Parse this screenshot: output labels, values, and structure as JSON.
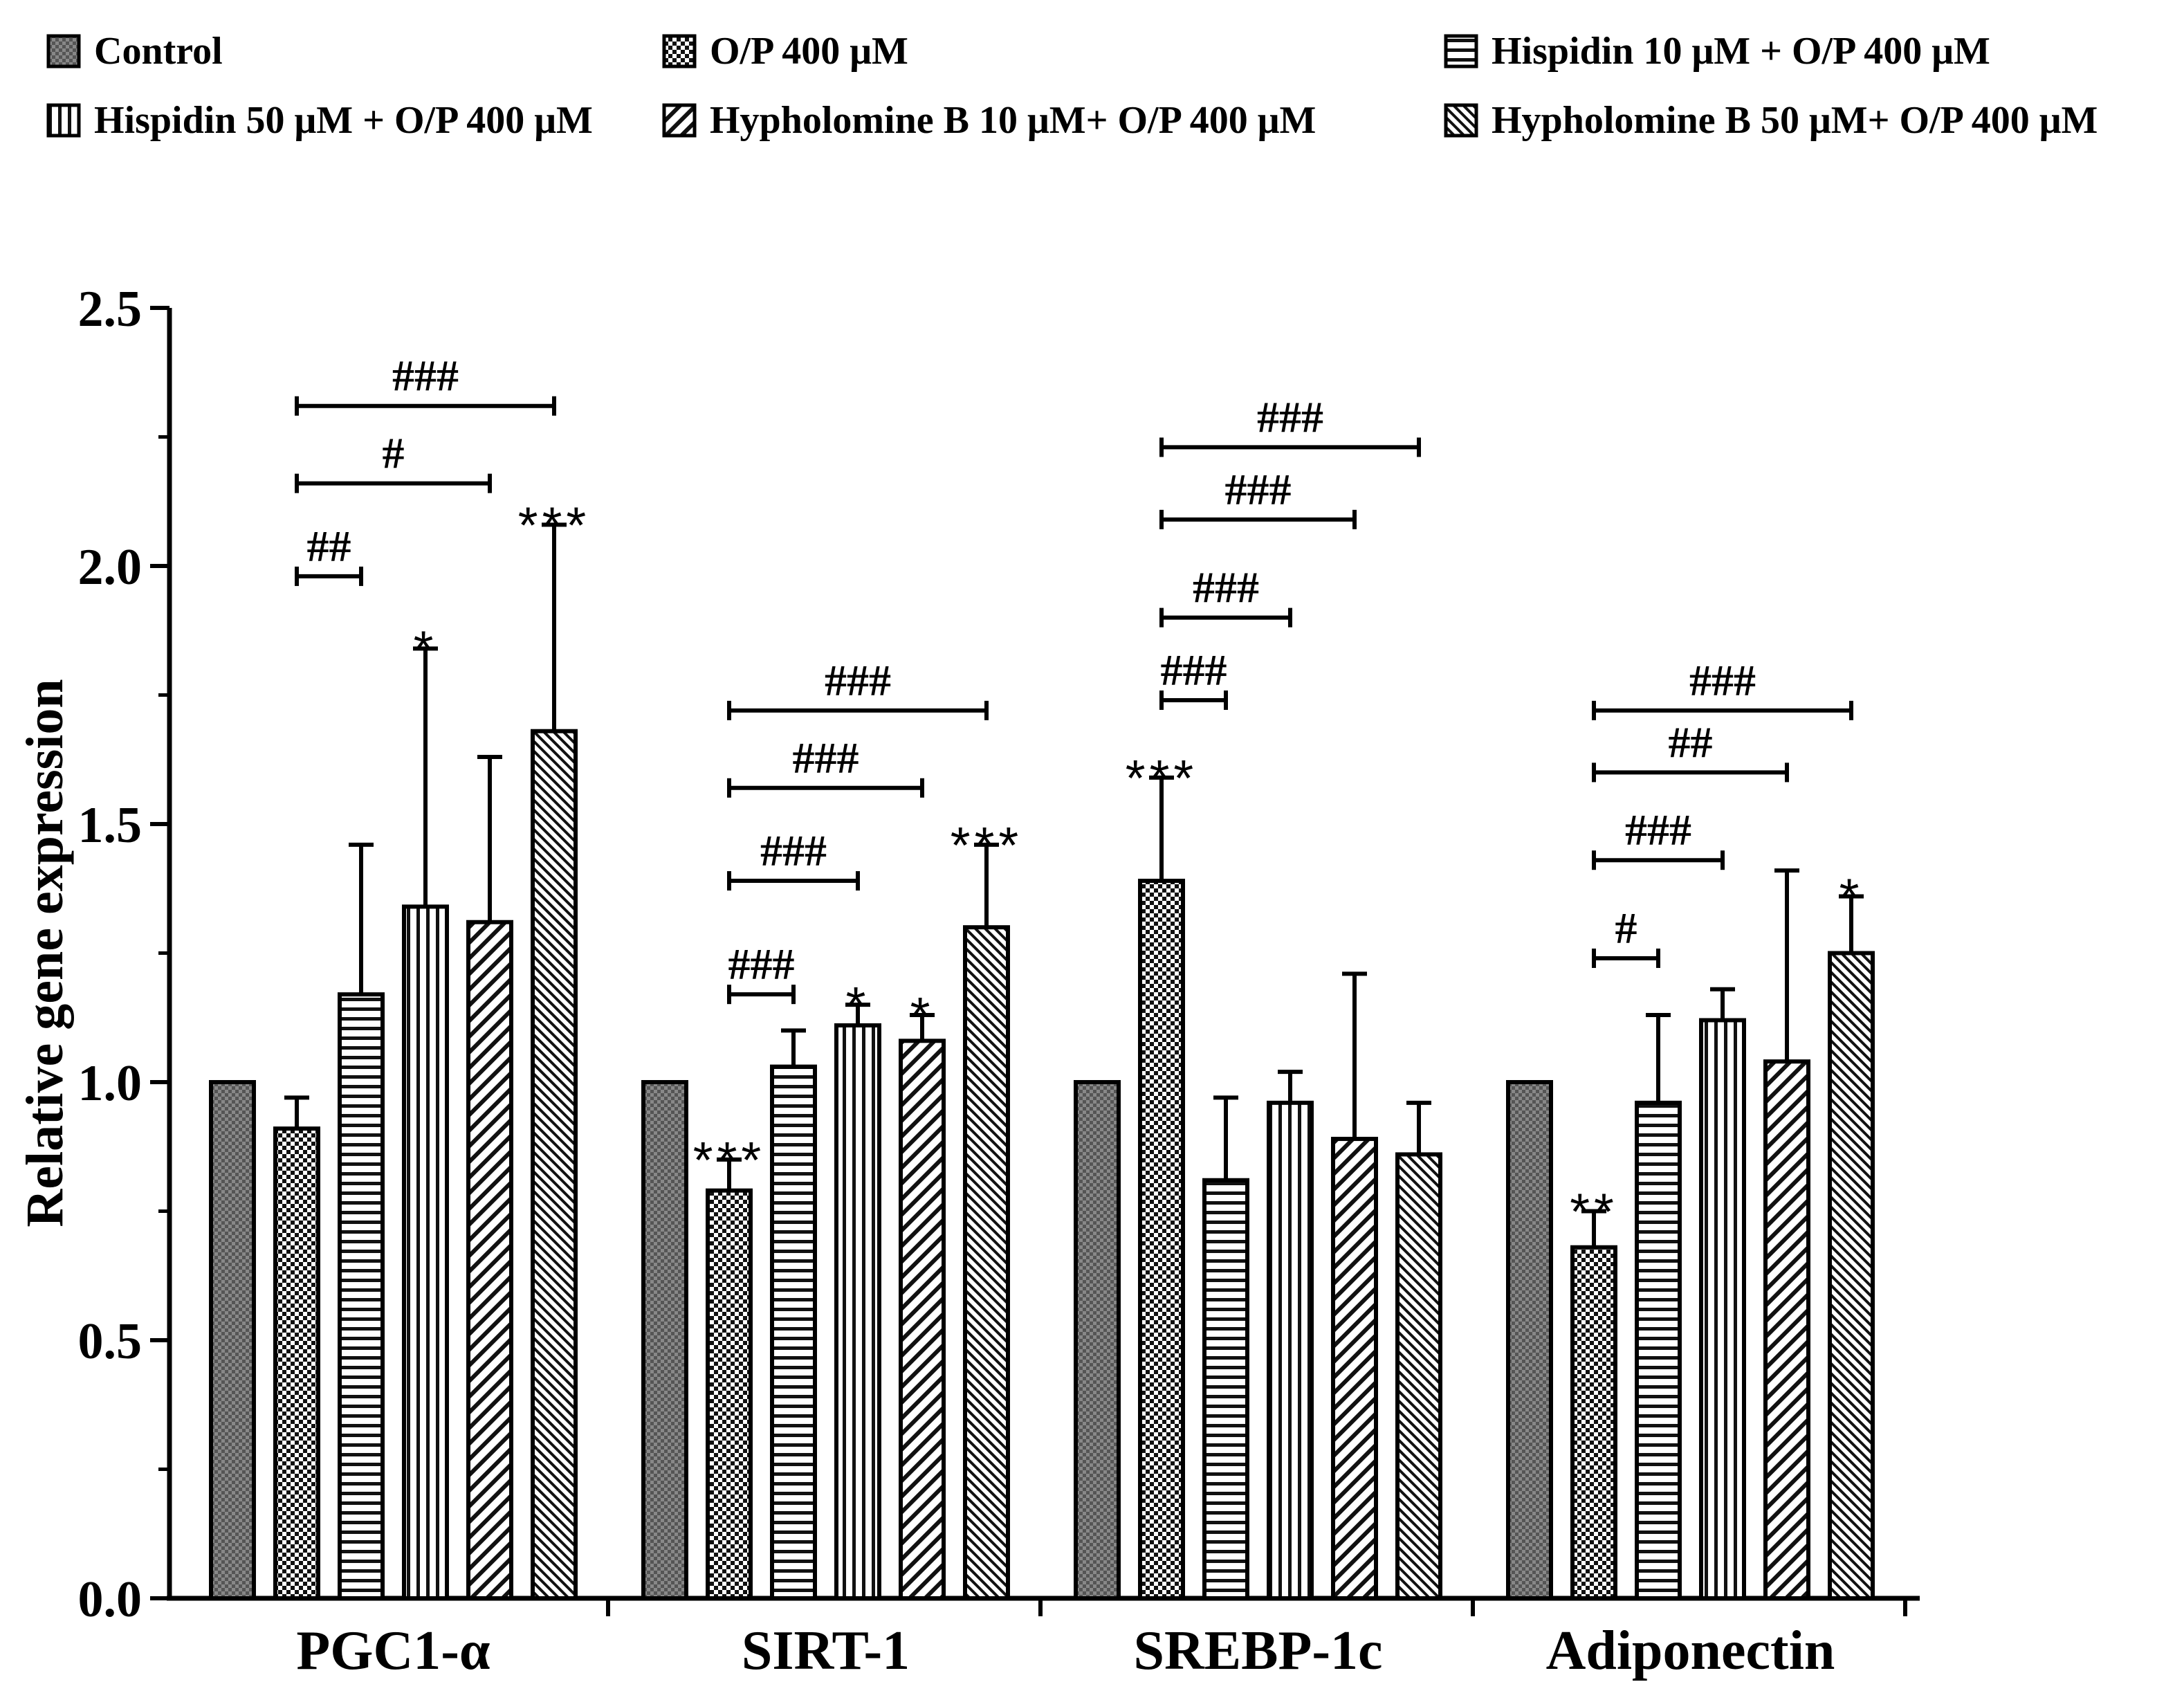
{
  "chart_data": {
    "type": "bar",
    "title": "",
    "xlabel": "",
    "ylabel": "Relative gene expression",
    "ylim": [
      0,
      2.5
    ],
    "yticks": [
      "0.0",
      "0.5",
      "1.0",
      "1.5",
      "2.0",
      "2.5"
    ],
    "categories": [
      "PGC1-α",
      "SIRT-1",
      "SREBP-1c",
      "Adiponectin"
    ],
    "legend_position": "top",
    "series": [
      {
        "name": "Control",
        "pattern": "checker-dark",
        "values": [
          1.0,
          1.0,
          1.0,
          1.0
        ],
        "errors": [
          0,
          0,
          0,
          0
        ]
      },
      {
        "name": "O/P 400 μM",
        "pattern": "checker-light",
        "values": [
          0.91,
          0.79,
          1.39,
          0.68
        ],
        "errors": [
          0.06,
          0.06,
          0.2,
          0.07
        ]
      },
      {
        "name": "Hispidin 10 μM + O/P 400 μM",
        "pattern": "horizontal",
        "values": [
          1.17,
          1.03,
          0.81,
          0.96
        ],
        "errors": [
          0.29,
          0.07,
          0.16,
          0.17
        ]
      },
      {
        "name": "Hispidin 50 μM + O/P 400 μM",
        "pattern": "vertical",
        "values": [
          1.34,
          1.11,
          0.96,
          1.12
        ],
        "errors": [
          0.5,
          0.04,
          0.06,
          0.06
        ]
      },
      {
        "name": "Hypholomine B 10 μM+ O/P 400 μM",
        "pattern": "diag-wide",
        "values": [
          1.31,
          1.08,
          0.89,
          1.04
        ],
        "errors": [
          0.32,
          0.05,
          0.32,
          0.37
        ]
      },
      {
        "name": "Hypholomine B 50 μM+ O/P 400 μM",
        "pattern": "diag-dense",
        "values": [
          1.68,
          1.3,
          0.86,
          1.25
        ],
        "errors": [
          0.4,
          0.16,
          0.1,
          0.11
        ]
      }
    ],
    "significance_stars": [
      {
        "category": 0,
        "series": 3,
        "label": "*"
      },
      {
        "category": 0,
        "series": 5,
        "label": "***"
      },
      {
        "category": 1,
        "series": 1,
        "label": "***"
      },
      {
        "category": 1,
        "series": 3,
        "label": "*"
      },
      {
        "category": 1,
        "series": 4,
        "label": "*"
      },
      {
        "category": 1,
        "series": 5,
        "label": "***"
      },
      {
        "category": 2,
        "series": 1,
        "label": "***"
      },
      {
        "category": 3,
        "series": 1,
        "label": "**"
      },
      {
        "category": 3,
        "series": 5,
        "label": "*"
      }
    ],
    "comparison_brackets": [
      {
        "category": 0,
        "from_series": 1,
        "to_series": 2,
        "level": 1.98,
        "label": "##"
      },
      {
        "category": 0,
        "from_series": 1,
        "to_series": 4,
        "level": 2.16,
        "label": "#"
      },
      {
        "category": 0,
        "from_series": 1,
        "to_series": 5,
        "level": 2.31,
        "label": "###"
      },
      {
        "category": 1,
        "from_series": 1,
        "to_series": 2,
        "level": 1.17,
        "label": "###"
      },
      {
        "category": 1,
        "from_series": 1,
        "to_series": 3,
        "level": 1.39,
        "label": "###"
      },
      {
        "category": 1,
        "from_series": 1,
        "to_series": 4,
        "level": 1.57,
        "label": "###"
      },
      {
        "category": 1,
        "from_series": 1,
        "to_series": 5,
        "level": 1.72,
        "label": "###"
      },
      {
        "category": 2,
        "from_series": 1,
        "to_series": 2,
        "level": 1.74,
        "label": "###"
      },
      {
        "category": 2,
        "from_series": 1,
        "to_series": 3,
        "level": 1.9,
        "label": "###"
      },
      {
        "category": 2,
        "from_series": 1,
        "to_series": 4,
        "level": 2.09,
        "label": "###"
      },
      {
        "category": 2,
        "from_series": 1,
        "to_series": 5,
        "level": 2.23,
        "label": "###"
      },
      {
        "category": 3,
        "from_series": 1,
        "to_series": 2,
        "level": 1.24,
        "label": "#"
      },
      {
        "category": 3,
        "from_series": 1,
        "to_series": 3,
        "level": 1.43,
        "label": "###"
      },
      {
        "category": 3,
        "from_series": 1,
        "to_series": 4,
        "level": 1.6,
        "label": "##"
      },
      {
        "category": 3,
        "from_series": 1,
        "to_series": 5,
        "level": 1.72,
        "label": "###"
      }
    ]
  }
}
